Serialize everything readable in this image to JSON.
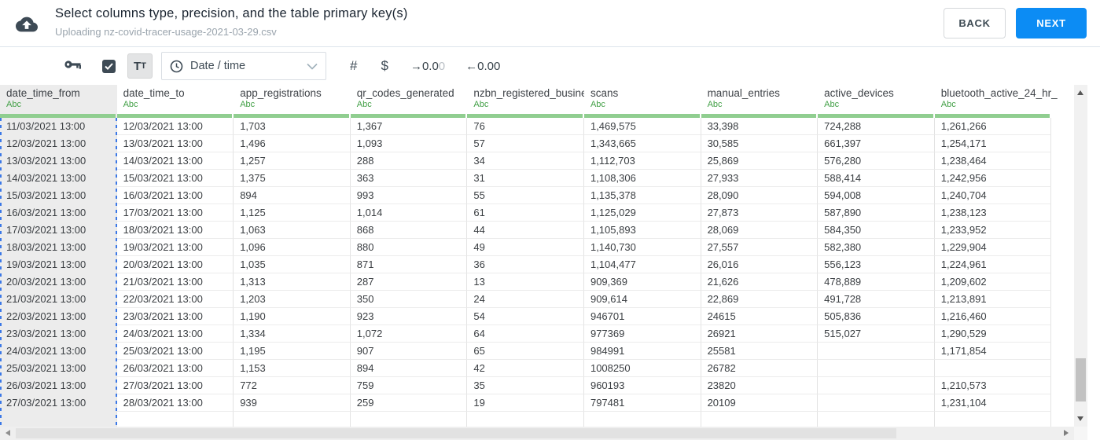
{
  "header": {
    "title": "Select columns type, precision, and the table primary key(s)",
    "subtitle": "Uploading nz-covid-tracer-usage-2021-03-29.csv",
    "back_label": "BACK",
    "next_label": "NEXT"
  },
  "toolbar": {
    "tt_big": "T",
    "tt_small": "T",
    "type_dropdown_value": "Date / time",
    "hash_label": "#",
    "dollar_label": "$",
    "decimal_right_arrow": "→",
    "decimal_right_value": "0.0",
    "decimal_right_faded": "0",
    "decimal_left_arrow": "←",
    "decimal_left_value": "0.00"
  },
  "table": {
    "type_badge": "Abc",
    "selected_column": 0,
    "columns": [
      "date_time_from",
      "date_time_to",
      "app_registrations",
      "qr_codes_generated",
      "nzbn_registered_busine",
      "scans",
      "manual_entries",
      "active_devices",
      "bluetooth_active_24_hr_"
    ],
    "rows": [
      [
        "11/03/2021 13:00",
        "12/03/2021 13:00",
        "1,703",
        "1,367",
        "76",
        "1,469,575",
        "33,398",
        "724,288",
        "1,261,266"
      ],
      [
        "12/03/2021 13:00",
        "13/03/2021 13:00",
        "1,496",
        "1,093",
        "57",
        "1,343,665",
        "30,585",
        "661,397",
        "1,254,171"
      ],
      [
        "13/03/2021 13:00",
        "14/03/2021 13:00",
        "1,257",
        "288",
        "34",
        "1,112,703",
        "25,869",
        "576,280",
        "1,238,464"
      ],
      [
        "14/03/2021 13:00",
        "15/03/2021 13:00",
        "1,375",
        "363",
        "31",
        "1,108,306",
        "27,933",
        "588,414",
        "1,242,956"
      ],
      [
        "15/03/2021 13:00",
        "16/03/2021 13:00",
        "894",
        "993",
        "55",
        "1,135,378",
        "28,090",
        "594,008",
        "1,240,704"
      ],
      [
        "16/03/2021 13:00",
        "17/03/2021 13:00",
        "1,125",
        "1,014",
        "61",
        "1,125,029",
        "27,873",
        "587,890",
        "1,238,123"
      ],
      [
        "17/03/2021 13:00",
        "18/03/2021 13:00",
        "1,063",
        "868",
        "44",
        "1,105,893",
        "28,069",
        "584,350",
        "1,233,952"
      ],
      [
        "18/03/2021 13:00",
        "19/03/2021 13:00",
        "1,096",
        "880",
        "49",
        "1,140,730",
        "27,557",
        "582,380",
        "1,229,904"
      ],
      [
        "19/03/2021 13:00",
        "20/03/2021 13:00",
        "1,035",
        "871",
        "36",
        "1,104,477",
        "26,016",
        "556,123",
        "1,224,961"
      ],
      [
        "20/03/2021 13:00",
        "21/03/2021 13:00",
        "1,313",
        "287",
        "13",
        "909,369",
        "21,626",
        "478,889",
        "1,209,602"
      ],
      [
        "21/03/2021 13:00",
        "22/03/2021 13:00",
        "1,203",
        "350",
        "24",
        "909,614",
        "22,869",
        "491,728",
        "1,213,891"
      ],
      [
        "22/03/2021 13:00",
        "23/03/2021 13:00",
        "1,190",
        "923",
        "54",
        "946701",
        "24615",
        "505,836",
        "1,216,460"
      ],
      [
        "23/03/2021 13:00",
        "24/03/2021 13:00",
        "1,334",
        "1,072",
        "64",
        "977369",
        "26921",
        "515,027",
        "1,290,529"
      ],
      [
        "24/03/2021 13:00",
        "25/03/2021 13:00",
        "1,195",
        "907",
        "65",
        "984991",
        "25581",
        "",
        "1,171,854"
      ],
      [
        "25/03/2021 13:00",
        "26/03/2021 13:00",
        "1,153",
        "894",
        "42",
        "1008250",
        "26782",
        "",
        ""
      ],
      [
        "26/03/2021 13:00",
        "27/03/2021 13:00",
        "772",
        "759",
        "35",
        "960193",
        "23820",
        "",
        "1,210,573"
      ],
      [
        "27/03/2021 13:00",
        "28/03/2021 13:00",
        "939",
        "259",
        "19",
        "797481",
        "20109",
        "",
        "1,231,104"
      ]
    ]
  },
  "colors": {
    "accent_blue": "#0c8cf4",
    "type_green": "#43a047",
    "column_bar_green": "#90ce90",
    "selection_dash_blue": "#3b78e7",
    "icon_slate": "#3d4a55"
  }
}
